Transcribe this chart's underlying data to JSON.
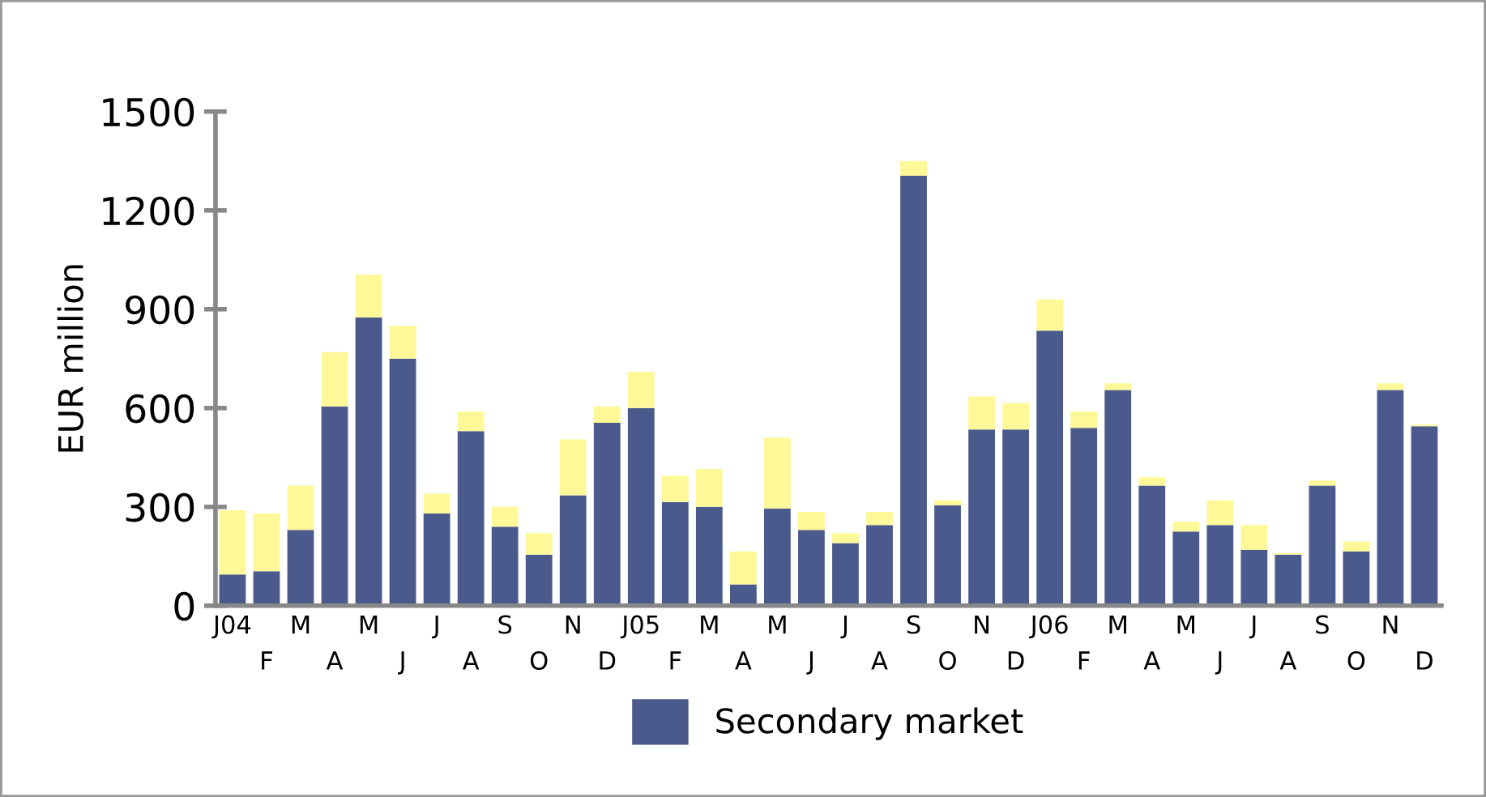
{
  "chart_data": {
    "type": "bar",
    "stacked": true,
    "ylabel": "EUR million",
    "categories": [
      "J04",
      "F",
      "M",
      "A",
      "M",
      "J",
      "J",
      "A",
      "S",
      "O",
      "N",
      "D",
      "J05",
      "F",
      "M",
      "A",
      "M",
      "J",
      "J",
      "A",
      "S",
      "O",
      "N",
      "D",
      "J06",
      "F",
      "M",
      "A",
      "M",
      "J",
      "J",
      "A",
      "S",
      "O",
      "N",
      "D"
    ],
    "series": [
      {
        "name": "Secondary market",
        "color": "#4a5a8c",
        "values": [
          95,
          105,
          230,
          605,
          875,
          750,
          280,
          530,
          240,
          155,
          335,
          555,
          600,
          315,
          300,
          65,
          295,
          230,
          190,
          245,
          1305,
          305,
          535,
          535,
          835,
          540,
          655,
          365,
          225,
          245,
          170,
          155,
          365,
          165,
          655,
          545
        ]
      },
      {
        "color": "#fff899",
        "values": [
          195,
          175,
          135,
          165,
          130,
          100,
          60,
          60,
          60,
          65,
          170,
          50,
          110,
          80,
          115,
          100,
          215,
          55,
          30,
          40,
          45,
          15,
          100,
          80,
          95,
          50,
          20,
          25,
          30,
          75,
          75,
          5,
          15,
          30,
          20,
          5
        ]
      }
    ],
    "ylim": [
      0,
      1500
    ],
    "yticks": [
      0,
      300,
      600,
      900,
      1200,
      1500
    ],
    "grid": false,
    "legend": "bottom"
  }
}
